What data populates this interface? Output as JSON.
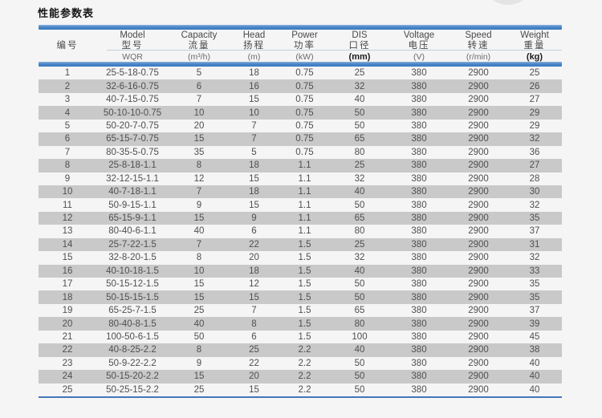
{
  "title": "性能参数表",
  "table": {
    "columns": [
      {
        "en": "",
        "cn": "编号",
        "unit": ""
      },
      {
        "en": "Model",
        "cn": "型号",
        "unit": "WQR"
      },
      {
        "en": "Capacity",
        "cn": "流量",
        "unit": "(m³/h)"
      },
      {
        "en": "Head",
        "cn": "扬程",
        "unit": "(m)"
      },
      {
        "en": "Power",
        "cn": "功率",
        "unit": "(kW)"
      },
      {
        "en": "DIS",
        "cn": "口径",
        "unit": "(mm)"
      },
      {
        "en": "Voltage",
        "cn": "电压",
        "unit": "(V)"
      },
      {
        "en": "Speed",
        "cn": "转速",
        "unit": "(r/min)"
      },
      {
        "en": "Weight",
        "cn": "重量",
        "unit": "(kg)"
      }
    ],
    "rows": [
      [
        "1",
        "25-5-18-0.75",
        "5",
        "18",
        "0.75",
        "25",
        "380",
        "2900",
        "25"
      ],
      [
        "2",
        "32-6-16-0.75",
        "6",
        "16",
        "0.75",
        "32",
        "380",
        "2900",
        "26"
      ],
      [
        "3",
        "40-7-15-0.75",
        "7",
        "15",
        "0.75",
        "40",
        "380",
        "2900",
        "27"
      ],
      [
        "4",
        "50-10-10-0.75",
        "10",
        "10",
        "0.75",
        "50",
        "380",
        "2900",
        "29"
      ],
      [
        "5",
        "50-20-7-0.75",
        "20",
        "7",
        "0.75",
        "50",
        "380",
        "2900",
        "29"
      ],
      [
        "6",
        "65-15-7-0.75",
        "15",
        "7",
        "0.75",
        "65",
        "380",
        "2900",
        "32"
      ],
      [
        "7",
        "80-35-5-0.75",
        "35",
        "5",
        "0.75",
        "80",
        "380",
        "2900",
        "36"
      ],
      [
        "8",
        "25-8-18-1.1",
        "8",
        "18",
        "1.1",
        "25",
        "380",
        "2900",
        "27"
      ],
      [
        "9",
        "32-12-15-1.1",
        "12",
        "15",
        "1.1",
        "32",
        "380",
        "2900",
        "28"
      ],
      [
        "10",
        "40-7-18-1.1",
        "7",
        "18",
        "1.1",
        "40",
        "380",
        "2900",
        "30"
      ],
      [
        "11",
        "50-9-15-1.1",
        "9",
        "15",
        "1.1",
        "50",
        "380",
        "2900",
        "32"
      ],
      [
        "12",
        "65-15-9-1.1",
        "15",
        "9",
        "1.1",
        "65",
        "380",
        "2900",
        "35"
      ],
      [
        "13",
        "80-40-6-1.1",
        "40",
        "6",
        "1.1",
        "80",
        "380",
        "2900",
        "37"
      ],
      [
        "14",
        "25-7-22-1.5",
        "7",
        "22",
        "1.5",
        "25",
        "380",
        "2900",
        "31"
      ],
      [
        "15",
        "32-8-20-1.5",
        "8",
        "20",
        "1.5",
        "32",
        "380",
        "2900",
        "32"
      ],
      [
        "16",
        "40-10-18-1.5",
        "10",
        "18",
        "1.5",
        "40",
        "380",
        "2900",
        "33"
      ],
      [
        "17",
        "50-15-12-1.5",
        "15",
        "12",
        "1.5",
        "50",
        "380",
        "2900",
        "35"
      ],
      [
        "18",
        "50-15-15-1.5",
        "15",
        "15",
        "1.5",
        "50",
        "380",
        "2900",
        "35"
      ],
      [
        "19",
        "65-25-7-1.5",
        "25",
        "7",
        "1.5",
        "65",
        "380",
        "2900",
        "37"
      ],
      [
        "20",
        "80-40-8-1.5",
        "40",
        "8",
        "1.5",
        "80",
        "380",
        "2900",
        "39"
      ],
      [
        "21",
        "100-50-6-1.5",
        "50",
        "6",
        "1.5",
        "100",
        "380",
        "2900",
        "45"
      ],
      [
        "22",
        "40-8-25-2.2",
        "8",
        "25",
        "2.2",
        "40",
        "380",
        "2900",
        "38"
      ],
      [
        "23",
        "50-9-22-2.2",
        "9",
        "22",
        "2.2",
        "50",
        "380",
        "2900",
        "40"
      ],
      [
        "24",
        "50-15-20-2.2",
        "15",
        "20",
        "2.2",
        "50",
        "380",
        "2900",
        "40"
      ],
      [
        "25",
        "50-25-15-2.2",
        "25",
        "15",
        "2.2",
        "50",
        "380",
        "2900",
        "40"
      ]
    ]
  },
  "colors": {
    "accent_blue": "#4583c3",
    "bottom_line_blue": "#4278ba",
    "row_shade_gray": "#c9c9c9",
    "background": "#f5f5f5"
  }
}
